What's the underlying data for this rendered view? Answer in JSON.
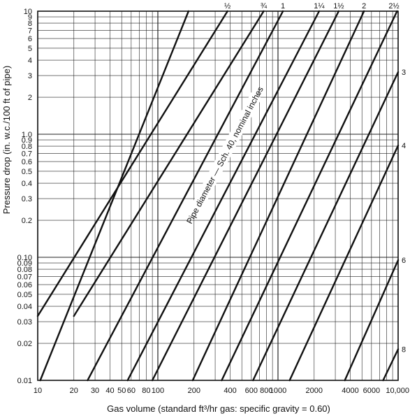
{
  "chart_data": {
    "type": "line",
    "title": "",
    "xlabel": "Gas volume (standard ft³/hr gas: specific gravity = 0.60)",
    "ylabel": "Pressure drop (in. w.c./100 ft of pipe)",
    "xscale": "log",
    "yscale": "log",
    "xlim": [
      10,
      10000
    ],
    "ylim": [
      0.01,
      10
    ],
    "grid": true,
    "x_tick_labels": [
      "10",
      "20",
      "30",
      "40",
      "50",
      "60",
      "80",
      "100",
      "200",
      "400",
      "600",
      "800",
      "1000",
      "2000",
      "4000",
      "6000",
      "10,000"
    ],
    "x_tick_values": [
      10,
      20,
      30,
      40,
      50,
      60,
      80,
      100,
      200,
      400,
      600,
      800,
      1000,
      2000,
      4000,
      6000,
      10000
    ],
    "y_tick_labels": [
      "0.01",
      "0.02",
      "0.03",
      "0.04",
      "0.05",
      "0.06",
      "0.07",
      "0.08",
      "0.09",
      "0.10",
      "0.2",
      "0.3",
      "0.4",
      "0.5",
      "0.6",
      "0.7",
      "0.8",
      "0.9",
      "1.0",
      "2",
      "3",
      "4",
      "5",
      "6",
      "7",
      "8",
      "9",
      "10"
    ],
    "y_tick_values": [
      0.01,
      0.02,
      0.03,
      0.04,
      0.05,
      0.06,
      0.07,
      0.08,
      0.09,
      0.1,
      0.2,
      0.3,
      0.4,
      0.5,
      0.6,
      0.7,
      0.8,
      0.9,
      1,
      2,
      3,
      4,
      5,
      6,
      7,
      8,
      9,
      10
    ],
    "annotation": "Pipe diameter — Sch. 40, nominal inches",
    "series": [
      {
        "name": "",
        "x": [
          10.5,
          180
        ],
        "y": [
          0.01,
          10
        ]
      },
      {
        "name": "½",
        "x": [
          10,
          380
        ],
        "y": [
          0.0333,
          10
        ]
      },
      {
        "name": "¾",
        "x": [
          20,
          760
        ],
        "y": [
          0.0333,
          10
        ]
      },
      {
        "name": "1",
        "x": [
          26,
          1100
        ],
        "y": [
          0.01,
          10
        ]
      },
      {
        "name": "1¼",
        "x": [
          56,
          2200
        ],
        "y": [
          0.01,
          10
        ]
      },
      {
        "name": "1½",
        "x": [
          90,
          3200
        ],
        "y": [
          0.01,
          10
        ]
      },
      {
        "name": "2",
        "x": [
          195,
          5200
        ],
        "y": [
          0.01,
          10
        ]
      },
      {
        "name": "2½",
        "x": [
          340,
          9800
        ],
        "y": [
          0.01,
          10
        ]
      },
      {
        "name": "3",
        "x": [
          620,
          10000
        ],
        "y": [
          0.01,
          3.2
        ]
      },
      {
        "name": "4",
        "x": [
          1250,
          10000
        ],
        "y": [
          0.01,
          0.81
        ]
      },
      {
        "name": "6",
        "x": [
          3600,
          10000
        ],
        "y": [
          0.01,
          0.0948
        ]
      },
      {
        "name": "8",
        "x": [
          7500,
          10000
        ],
        "y": [
          0.01,
          0.0179
        ]
      }
    ]
  }
}
